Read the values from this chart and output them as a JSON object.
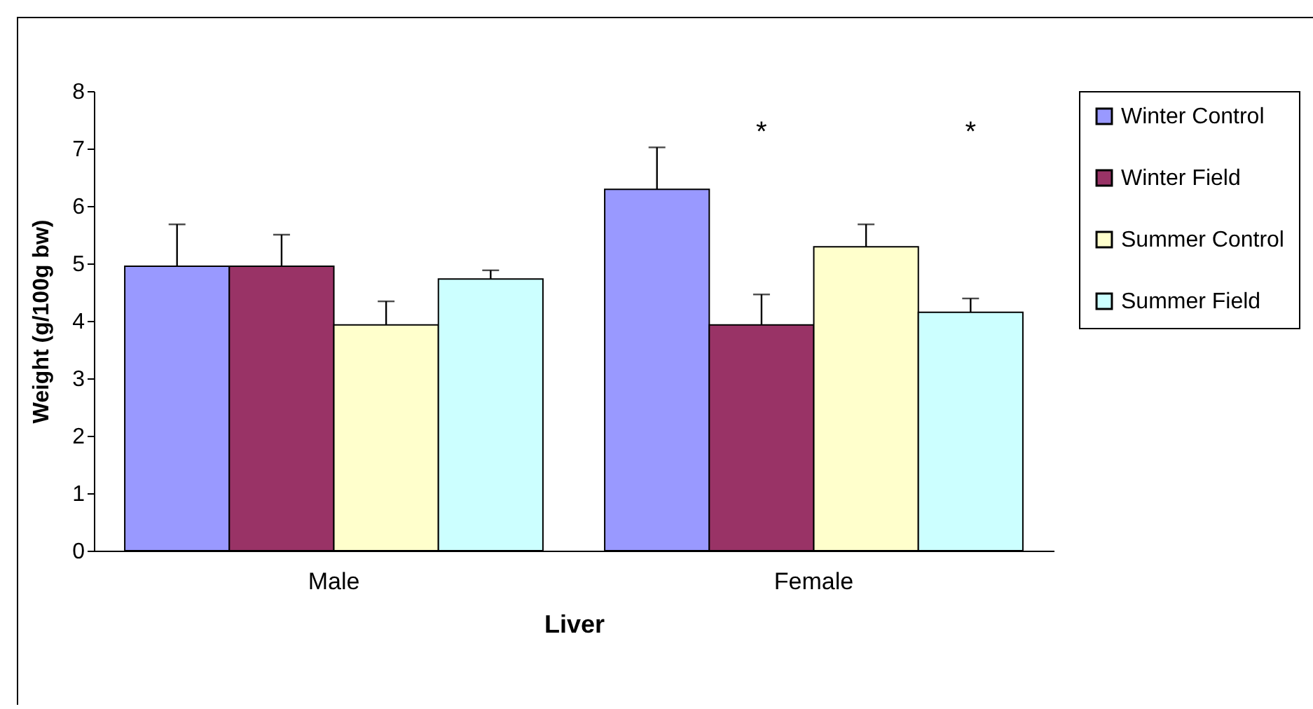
{
  "chart_data": {
    "type": "bar",
    "xlabel": "Liver",
    "ylabel": "Weight (g/100g bw)",
    "categories": [
      "Male",
      "Female"
    ],
    "series": [
      {
        "name": "Winter Control",
        "color": "#9999ff",
        "values": [
          4.95,
          6.29
        ],
        "errors": [
          [
            4.95,
            5.68
          ],
          [
            6.29,
            7.02
          ]
        ]
      },
      {
        "name": "Winter Field",
        "color": "#993366",
        "values": [
          4.95,
          3.93
        ],
        "errors": [
          [
            4.95,
            5.5
          ],
          [
            3.93,
            4.46
          ]
        ]
      },
      {
        "name": "Summer Control",
        "color": "#ffffcc",
        "values": [
          3.93,
          5.29
        ],
        "errors": [
          [
            3.93,
            4.34
          ],
          [
            5.29,
            5.68
          ]
        ]
      },
      {
        "name": "Summer Field",
        "color": "#ccffff",
        "values": [
          4.73,
          4.15
        ],
        "errors": [
          [
            4.73,
            4.88
          ],
          [
            4.15,
            4.39
          ]
        ]
      }
    ],
    "ylim": [
      0,
      8
    ],
    "yticks": [
      0,
      1,
      2,
      3,
      4,
      5,
      6,
      7,
      8
    ],
    "grid": false,
    "legend": "right",
    "annotations": [
      "*",
      "*"
    ]
  }
}
